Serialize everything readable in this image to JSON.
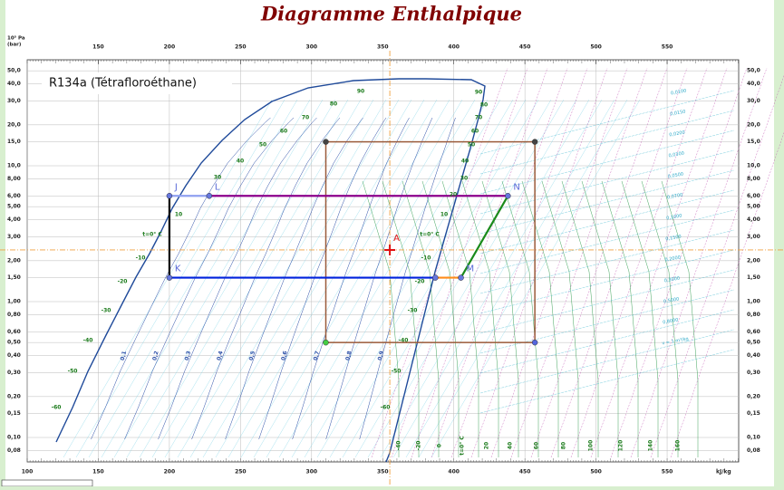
{
  "title": "Diagramme Enthalpique",
  "p_unit": "10⁵ Pa",
  "p_unit2": "(bar)",
  "substance": "R134a (Tétrafloroéthane)",
  "h_unit": "kJ/kg",
  "h_ticks_top": [
    150,
    200,
    250,
    300,
    350,
    400,
    450,
    500,
    550
  ],
  "h_ticks_bottom": [
    100,
    150,
    200,
    250,
    300,
    350,
    400,
    450,
    500,
    550
  ],
  "p_ticks": [
    {
      "value": 50,
      "label": "50,0"
    },
    {
      "value": 40,
      "label": "40,0"
    },
    {
      "value": 30,
      "label": "30,0"
    },
    {
      "value": 20,
      "label": "20,0"
    },
    {
      "value": 15,
      "label": "15,0"
    },
    {
      "value": 10,
      "label": "10,0"
    },
    {
      "value": 8,
      "label": "8,00"
    },
    {
      "value": 6,
      "label": "6,00"
    },
    {
      "value": 5,
      "label": "5,00"
    },
    {
      "value": 4,
      "label": "4,00"
    },
    {
      "value": 3,
      "label": "3,00"
    },
    {
      "value": 2,
      "label": "2,00"
    },
    {
      "value": 1.5,
      "label": "1,50"
    },
    {
      "value": 1,
      "label": "1,00"
    },
    {
      "value": 0.8,
      "label": "0,80"
    },
    {
      "value": 0.6,
      "label": "0,60"
    },
    {
      "value": 0.5,
      "label": "0,50"
    },
    {
      "value": 0.4,
      "label": "0,40"
    },
    {
      "value": 0.3,
      "label": "0,30"
    },
    {
      "value": 0.2,
      "label": "0,20"
    },
    {
      "value": 0.15,
      "label": "0,15"
    },
    {
      "value": 0.1,
      "label": "0,10"
    },
    {
      "value": 0.08,
      "label": "0,08"
    }
  ],
  "points": [
    {
      "label": "J",
      "h": 200,
      "p": 6
    },
    {
      "label": "K",
      "h": 200,
      "p": 1.5
    },
    {
      "label": "L",
      "h": 228,
      "p": 6
    },
    {
      "label": "N",
      "h": 438,
      "p": 6
    },
    {
      "label": "M",
      "h": 405,
      "p": 1.5
    },
    {
      "h": 387,
      "p": 1.5
    }
  ],
  "segments": [
    {
      "from": 0,
      "to": 1,
      "color": "#000000"
    },
    {
      "from": 0,
      "to": 2,
      "color": "#8fa0f0"
    },
    {
      "from": 2,
      "to": 3,
      "color": "#8b008b"
    },
    {
      "from": 3,
      "to": 4,
      "color": "#1a8a1a"
    },
    {
      "from": 1,
      "to": 5,
      "color": "#0022dd"
    },
    {
      "from": 5,
      "to": 4,
      "color": "#ff8c1a"
    }
  ],
  "box": {
    "h1": 310,
    "h2": 457,
    "p1": 0.5,
    "p2": 15,
    "color": "#9a5a3a"
  },
  "state_A": {
    "label": "A",
    "h": 355,
    "p": 2.4
  },
  "quality_labels": [
    "0,1",
    "0,2",
    "0,3",
    "0,4",
    "0,5",
    "0,6",
    "0,7",
    "0,8",
    "0,9"
  ],
  "liquid_temps": [
    "-60",
    "-50",
    "-40",
    "-30",
    "-20",
    "-10",
    "t=0° C",
    "10",
    "30",
    "40",
    "50",
    "60",
    "70",
    "80",
    "90"
  ],
  "vapor_temps": [
    "90",
    "80",
    "70",
    "60",
    "50",
    "40",
    "30",
    "20",
    "10",
    "t=0° C",
    "-10",
    "-20",
    "-30",
    "-40",
    "-50",
    "-60"
  ],
  "bottom_temps": [
    "-40",
    "-20",
    "0",
    "t=0° C",
    "20",
    "40",
    "60",
    "80",
    "100",
    "120",
    "140",
    "160"
  ],
  "volume_labels": [
    "0,0100",
    "0,0150",
    "0,0200",
    "0,0300",
    "0,0500",
    "0,0700",
    "0,1000",
    "0,1500",
    "0,2000",
    "0,3000",
    "0,5000",
    "0,8000",
    "v = 1 m³/kg"
  ]
}
